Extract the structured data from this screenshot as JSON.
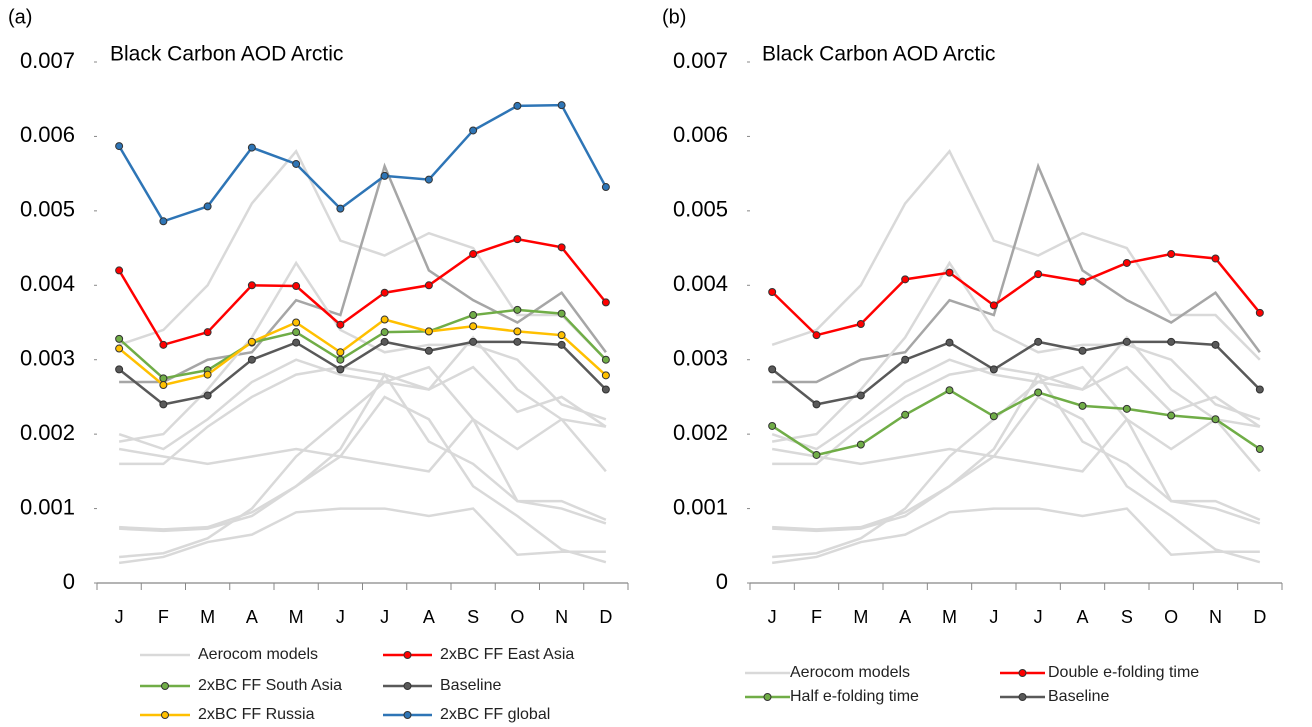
{
  "chart_data": [
    {
      "type": "line",
      "panel_label": "(a)",
      "title": "Black Carbon AOD Arctic",
      "categories": [
        "J",
        "F",
        "M",
        "A",
        "M",
        "J",
        "J",
        "A",
        "S",
        "O",
        "N",
        "D"
      ],
      "ylim": [
        0,
        0.007
      ],
      "yticks": [
        0,
        0.001,
        0.002,
        0.003,
        0.004,
        0.005,
        0.006,
        0.007
      ],
      "aerocom": {
        "name": "Aerocom models",
        "color": "#d9d9d9",
        "lines": [
          {
            "color": "#d9d9d9",
            "values": [
              0.0032,
              0.0034,
              0.004,
              0.0051,
              0.0058,
              0.0046,
              0.0044,
              0.0047,
              0.0045,
              0.0036,
              0.0036,
              0.003
            ]
          },
          {
            "color": "#a6a6a6",
            "values": [
              0.0027,
              0.0027,
              0.003,
              0.0031,
              0.0038,
              0.0036,
              0.0056,
              0.0042,
              0.0038,
              0.0035,
              0.0039,
              0.0031
            ]
          },
          {
            "color": "#d9d9d9",
            "values": [
              0.0019,
              0.002,
              0.0026,
              0.0033,
              0.0043,
              0.0034,
              0.0031,
              0.0032,
              0.0032,
              0.003,
              0.0024,
              0.0022
            ]
          },
          {
            "color": "#d9d9d9",
            "values": [
              0.0016,
              0.0016,
              0.0021,
              0.0025,
              0.0028,
              0.0029,
              0.0028,
              0.0026,
              0.0029,
              0.0023,
              0.0025,
              0.0021
            ]
          },
          {
            "color": "#d9d9d9",
            "values": [
              0.0018,
              0.0017,
              0.0016,
              0.0017,
              0.0018,
              0.0017,
              0.0016,
              0.0015,
              0.0022,
              0.0018,
              0.0022,
              0.0021
            ]
          },
          {
            "color": "#d9d9d9",
            "values": [
              0.002,
              0.0018,
              0.0022,
              0.0027,
              0.003,
              0.0028,
              0.0027,
              0.0026,
              0.0033,
              0.0026,
              0.0022,
              0.0015
            ]
          },
          {
            "color": "#d9d9d9",
            "values": [
              0.00075,
              0.00072,
              0.00075,
              0.00095,
              0.0013,
              0.0017,
              0.0025,
              0.0022,
              0.0013,
              0.0009,
              0.00045,
              0.00028
            ]
          },
          {
            "color": "#d9d9d9",
            "values": [
              0.00073,
              0.0007,
              0.00073,
              0.0009,
              0.0013,
              0.0018,
              0.0028,
              0.0019,
              0.0016,
              0.0011,
              0.0011,
              0.00085
            ]
          },
          {
            "color": "#d9d9d9",
            "values": [
              0.00035,
              0.0004,
              0.0006,
              0.001,
              0.0017,
              0.0022,
              0.0027,
              0.0029,
              0.0022,
              0.0011,
              0.001,
              0.0008
            ]
          },
          {
            "color": "#d9d9d9",
            "values": [
              0.00027,
              0.00035,
              0.00055,
              0.00065,
              0.00095,
              0.001,
              0.001,
              0.0009,
              0.001,
              0.00038,
              0.00042,
              0.00042
            ]
          }
        ]
      },
      "series": [
        {
          "name": "2xBC FF East Asia",
          "color": "#ff0000",
          "values": [
            0.0042,
            0.0032,
            0.00337,
            0.004,
            0.00399,
            0.00347,
            0.0039,
            0.004,
            0.00442,
            0.00462,
            0.00451,
            0.00377
          ]
        },
        {
          "name": "2xBC FF South Asia",
          "color": "#70ad47",
          "values": [
            0.00328,
            0.00275,
            0.00286,
            0.00323,
            0.00337,
            0.003,
            0.00337,
            0.00338,
            0.0036,
            0.00367,
            0.00362,
            0.003
          ]
        },
        {
          "name": "Baseline",
          "color": "#595959",
          "values": [
            0.00287,
            0.0024,
            0.00252,
            0.003,
            0.00323,
            0.00287,
            0.00324,
            0.00312,
            0.00324,
            0.00324,
            0.0032,
            0.0026
          ]
        },
        {
          "name": "2xBC FF Russia",
          "color": "#ffc000",
          "values": [
            0.00315,
            0.00266,
            0.0028,
            0.00324,
            0.0035,
            0.0031,
            0.00354,
            0.00338,
            0.00345,
            0.00338,
            0.00333,
            0.00279
          ]
        },
        {
          "name": "2xBC FF global",
          "color": "#2e75b6",
          "values": [
            0.00587,
            0.00486,
            0.00506,
            0.00585,
            0.00563,
            0.00503,
            0.00547,
            0.00542,
            0.00608,
            0.00641,
            0.00642,
            0.00532
          ]
        }
      ]
    },
    {
      "type": "line",
      "panel_label": "(b)",
      "title": "Black Carbon AOD Arctic",
      "categories": [
        "J",
        "F",
        "M",
        "A",
        "M",
        "J",
        "J",
        "A",
        "S",
        "O",
        "N",
        "D"
      ],
      "ylim": [
        0,
        0.007
      ],
      "yticks": [
        0,
        0.001,
        0.002,
        0.003,
        0.004,
        0.005,
        0.006,
        0.007
      ],
      "aerocom": {
        "name": "Aerocom models",
        "color": "#d9d9d9",
        "lines": [
          {
            "color": "#d9d9d9",
            "values": [
              0.0032,
              0.0034,
              0.004,
              0.0051,
              0.0058,
              0.0046,
              0.0044,
              0.0047,
              0.0045,
              0.0036,
              0.0036,
              0.003
            ]
          },
          {
            "color": "#a6a6a6",
            "values": [
              0.0027,
              0.0027,
              0.003,
              0.0031,
              0.0038,
              0.0036,
              0.0056,
              0.0042,
              0.0038,
              0.0035,
              0.0039,
              0.0031
            ]
          },
          {
            "color": "#d9d9d9",
            "values": [
              0.0019,
              0.002,
              0.0026,
              0.0033,
              0.0043,
              0.0034,
              0.0031,
              0.0032,
              0.0032,
              0.003,
              0.0024,
              0.0022
            ]
          },
          {
            "color": "#d9d9d9",
            "values": [
              0.0016,
              0.0016,
              0.0021,
              0.0025,
              0.0028,
              0.0029,
              0.0028,
              0.0026,
              0.0029,
              0.0023,
              0.0025,
              0.0021
            ]
          },
          {
            "color": "#d9d9d9",
            "values": [
              0.0018,
              0.0017,
              0.0016,
              0.0017,
              0.0018,
              0.0017,
              0.0016,
              0.0015,
              0.0022,
              0.0018,
              0.0022,
              0.0021
            ]
          },
          {
            "color": "#d9d9d9",
            "values": [
              0.002,
              0.0018,
              0.0022,
              0.0027,
              0.003,
              0.0028,
              0.0027,
              0.0026,
              0.0033,
              0.0026,
              0.0022,
              0.0015
            ]
          },
          {
            "color": "#d9d9d9",
            "values": [
              0.00075,
              0.00072,
              0.00075,
              0.00095,
              0.0013,
              0.0017,
              0.0025,
              0.0022,
              0.0013,
              0.0009,
              0.00045,
              0.00028
            ]
          },
          {
            "color": "#d9d9d9",
            "values": [
              0.00073,
              0.0007,
              0.00073,
              0.0009,
              0.0013,
              0.0018,
              0.0028,
              0.0019,
              0.0016,
              0.0011,
              0.0011,
              0.00085
            ]
          },
          {
            "color": "#d9d9d9",
            "values": [
              0.00035,
              0.0004,
              0.0006,
              0.001,
              0.0017,
              0.0022,
              0.0027,
              0.0029,
              0.0022,
              0.0011,
              0.001,
              0.0008
            ]
          },
          {
            "color": "#d9d9d9",
            "values": [
              0.00027,
              0.00035,
              0.00055,
              0.00065,
              0.00095,
              0.001,
              0.001,
              0.0009,
              0.001,
              0.00038,
              0.00042,
              0.00042
            ]
          }
        ]
      },
      "series": [
        {
          "name": "Double e-folding time",
          "color": "#ff0000",
          "values": [
            0.00391,
            0.00333,
            0.00348,
            0.00408,
            0.00417,
            0.00373,
            0.00415,
            0.00405,
            0.0043,
            0.00442,
            0.00436,
            0.00363
          ]
        },
        {
          "name": "Half e-folding time",
          "color": "#70ad47",
          "values": [
            0.00211,
            0.00172,
            0.00186,
            0.00226,
            0.00259,
            0.00224,
            0.00256,
            0.00238,
            0.00234,
            0.00225,
            0.0022,
            0.0018
          ]
        },
        {
          "name": "Baseline",
          "color": "#595959",
          "values": [
            0.00287,
            0.0024,
            0.00252,
            0.003,
            0.00323,
            0.00287,
            0.00324,
            0.00312,
            0.00324,
            0.00324,
            0.0032,
            0.0026
          ]
        }
      ]
    }
  ]
}
